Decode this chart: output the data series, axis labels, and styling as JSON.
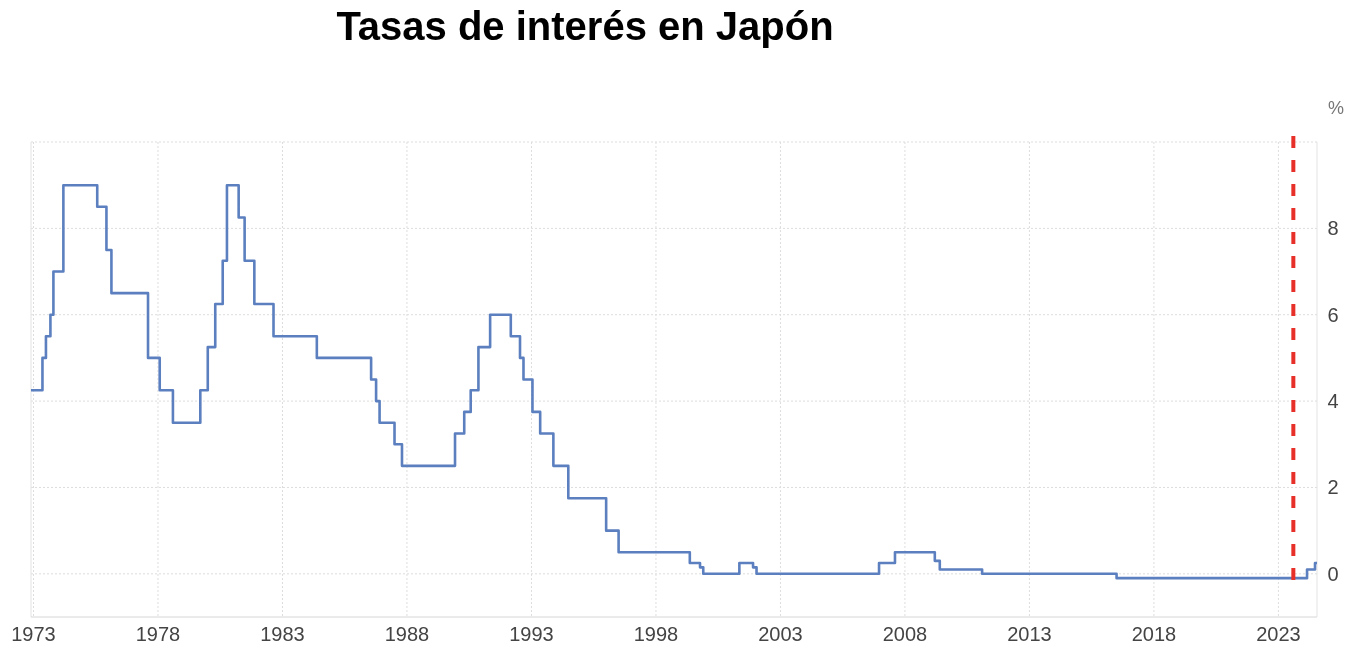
{
  "chart_data": {
    "type": "step",
    "title": "Tasas de interés en Japón",
    "ylabel": "%",
    "x": [
      1972.9,
      1973.36,
      1973.5,
      1973.68,
      1973.8,
      1974.2,
      1975.56,
      1975.93,
      1976.13,
      1977.6,
      1978.07,
      1978.6,
      1979.7,
      1980.0,
      1980.3,
      1980.6,
      1980.77,
      1981.24,
      1981.48,
      1981.87,
      1982.64,
      1984.38,
      1986.56,
      1986.76,
      1986.9,
      1987.5,
      1987.8,
      1989.93,
      1990.3,
      1990.56,
      1990.87,
      1991.34,
      1992.17,
      1992.54,
      1992.68,
      1993.04,
      1993.35,
      1993.88,
      1994.48,
      1996.0,
      1996.5,
      1999.36,
      1999.77,
      1999.9,
      2001.35,
      2001.9,
      2002.04,
      2006.96,
      2007.6,
      2009.2,
      2009.4,
      2011.1,
      2016.5,
      2024.15,
      2024.47,
      2024.55
    ],
    "series": [
      {
        "color": "#5b7fbf",
        "values": [
          4.25,
          5,
          5.5,
          6,
          7,
          9,
          8.5,
          7.5,
          6.5,
          5,
          4.25,
          3.5,
          4.25,
          5.25,
          6.25,
          7.25,
          9,
          8.25,
          7.25,
          6.25,
          5.5,
          5,
          4.5,
          4,
          3.5,
          3,
          2.5,
          3.25,
          3.75,
          4.25,
          5.25,
          6,
          5.5,
          5,
          4.5,
          3.75,
          3.25,
          2.5,
          1.75,
          1,
          0.5,
          0.25,
          0.15,
          0,
          0.25,
          0.15,
          0,
          0.25,
          0.5,
          0.3,
          0.1,
          0,
          -0.1,
          0.1,
          0.25,
          0.25
        ]
      }
    ],
    "xlim": [
      1972.9,
      2024.55
    ],
    "xticks": [
      1973,
      1978,
      1983,
      1988,
      1993,
      1998,
      2003,
      2008,
      2013,
      2018,
      2023
    ],
    "ylim": [
      -1,
      10
    ],
    "yticks": [
      0,
      2,
      4,
      6,
      8,
      {
        "value": 10,
        "label": null
      }
    ],
    "grid": true,
    "ref_lines": [
      {
        "axis": "x",
        "value": 2023.6,
        "color": "#e8302a",
        "line_style": "dashed"
      }
    ]
  }
}
